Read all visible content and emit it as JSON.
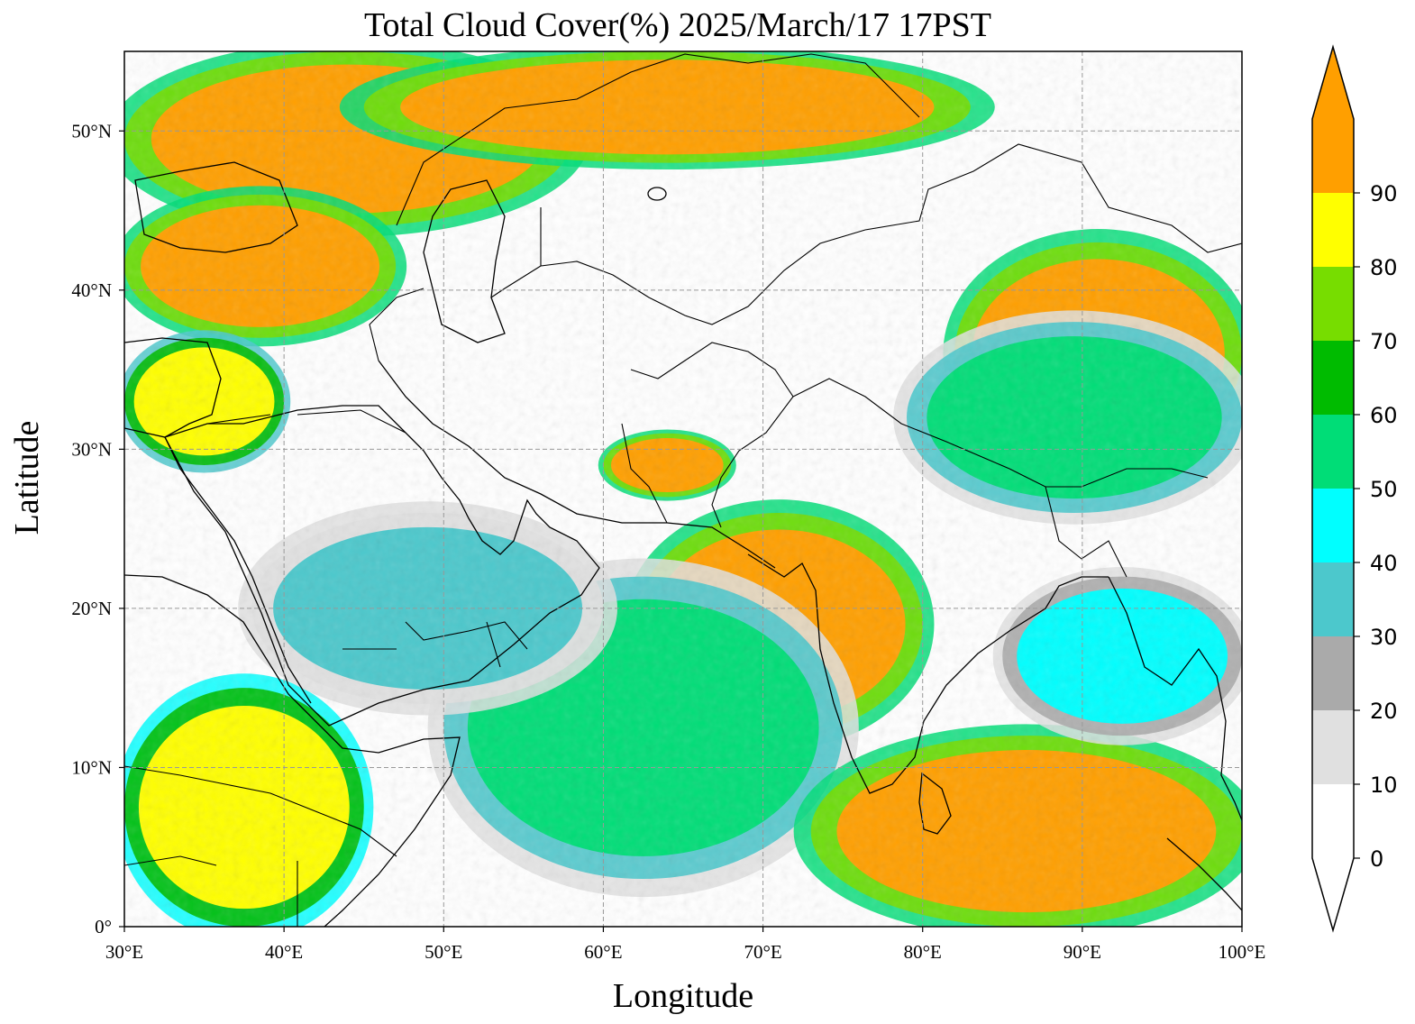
{
  "title": "Total Cloud Cover(%)  2025/March/17 17PST",
  "xlabel": "Longitude",
  "ylabel": "Latitude",
  "map": {
    "lon_range": [
      30,
      100
    ],
    "lat_range": [
      0,
      55
    ],
    "gridlines": "dashed gray",
    "coastlines": true,
    "borders": true
  },
  "x_ticks": [
    {
      "value": 30,
      "label": "30°E"
    },
    {
      "value": 40,
      "label": "40°E"
    },
    {
      "value": 50,
      "label": "50°E"
    },
    {
      "value": 60,
      "label": "60°E"
    },
    {
      "value": 70,
      "label": "70°E"
    },
    {
      "value": 80,
      "label": "80°E"
    },
    {
      "value": 90,
      "label": "90°E"
    },
    {
      "value": 100,
      "label": "100°E"
    }
  ],
  "y_ticks": [
    {
      "value": 0,
      "label": "0°"
    },
    {
      "value": 10,
      "label": "10°N"
    },
    {
      "value": 20,
      "label": "20°N"
    },
    {
      "value": 30,
      "label": "30°N"
    },
    {
      "value": 40,
      "label": "40°N"
    },
    {
      "value": 50,
      "label": "50°N"
    }
  ],
  "colorbar": {
    "range": [
      0,
      100
    ],
    "extend": "both",
    "levels": [
      {
        "from": 0,
        "to": 10,
        "color": "#ffffff"
      },
      {
        "from": 10,
        "to": 20,
        "color": "#e0e0e0"
      },
      {
        "from": 20,
        "to": 30,
        "color": "#aaaaaa"
      },
      {
        "from": 30,
        "to": 40,
        "color": "#4cc8cc"
      },
      {
        "from": 40,
        "to": 50,
        "color": "#00ffff"
      },
      {
        "from": 50,
        "to": 60,
        "color": "#00dd77"
      },
      {
        "from": 60,
        "to": 70,
        "color": "#00bb00"
      },
      {
        "from": 70,
        "to": 80,
        "color": "#77dd00"
      },
      {
        "from": 80,
        "to": 90,
        "color": "#ffff00"
      },
      {
        "from": 90,
        "to": 100,
        "color": "#ff9f00"
      }
    ],
    "ticks": [
      "0",
      "10",
      "20",
      "30",
      "40",
      "50",
      "60",
      "70",
      "80",
      "90"
    ]
  },
  "chart_data": {
    "type": "heatmap",
    "variable": "Total Cloud Cover(%)",
    "x_range": [
      30,
      100
    ],
    "y_range": [
      0,
      55
    ],
    "xlabel": "Longitude",
    "ylabel": "Latitude",
    "cloud_regions": [
      {
        "lon": [
          30,
          58
        ],
        "lat": [
          44,
          55
        ],
        "cover": 95
      },
      {
        "lon": [
          45,
          83
        ],
        "lat": [
          48,
          55
        ],
        "cover": 95
      },
      {
        "lon": [
          30,
          47
        ],
        "lat": [
          37,
          46
        ],
        "cover": 95
      },
      {
        "lon": [
          30,
          40
        ],
        "lat": [
          29,
          37
        ],
        "cover": 80
      },
      {
        "lon": [
          60,
          68
        ],
        "lat": [
          27,
          31
        ],
        "cover": 95
      },
      {
        "lon": [
          82,
          100
        ],
        "lat": [
          29,
          43
        ],
        "cover": 95
      },
      {
        "lon": [
          79,
          100
        ],
        "lat": [
          26,
          38
        ],
        "cover": 55
      },
      {
        "lon": [
          62,
          80
        ],
        "lat": [
          12,
          26
        ],
        "cover": 95
      },
      {
        "lon": [
          50,
          75
        ],
        "lat": [
          3,
          22
        ],
        "cover": 50
      },
      {
        "lon": [
          73,
          100
        ],
        "lat": [
          0,
          12
        ],
        "cover": 95
      },
      {
        "lon": [
          30,
          45
        ],
        "lat": [
          0,
          15
        ],
        "cover": 85
      },
      {
        "lon": [
          85,
          100
        ],
        "lat": [
          12,
          22
        ],
        "cover": 40
      },
      {
        "lon": [
          38,
          60
        ],
        "lat": [
          14,
          26
        ],
        "cover": 35
      }
    ]
  }
}
